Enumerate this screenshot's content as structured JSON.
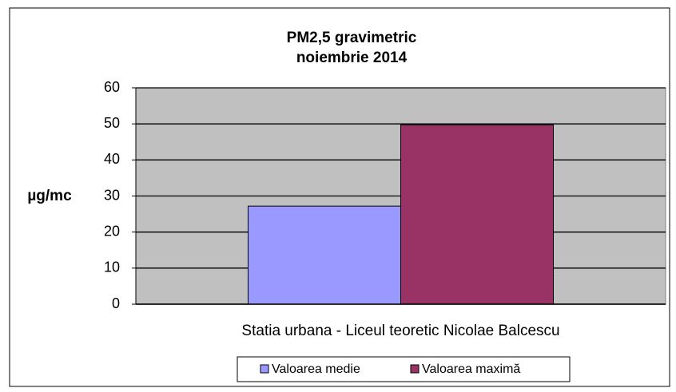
{
  "chart_data": {
    "type": "bar",
    "title": [
      "PM2,5 gravimetric",
      "noiembrie 2014"
    ],
    "y_label": "µg/mc",
    "categories": [
      "Statia urbana - Liceul teoretic Nicolae Balcescu"
    ],
    "series": [
      {
        "name": "Valoarea medie",
        "color": "#9999ff",
        "values": [
          27.2
        ]
      },
      {
        "name": "Valoarea maximă",
        "color": "#993366",
        "values": [
          49.7
        ]
      }
    ],
    "ylim": [
      0,
      60
    ],
    "yticks": [
      0,
      10,
      20,
      30,
      40,
      50,
      60
    ],
    "grid": true,
    "legend": "bottom"
  }
}
